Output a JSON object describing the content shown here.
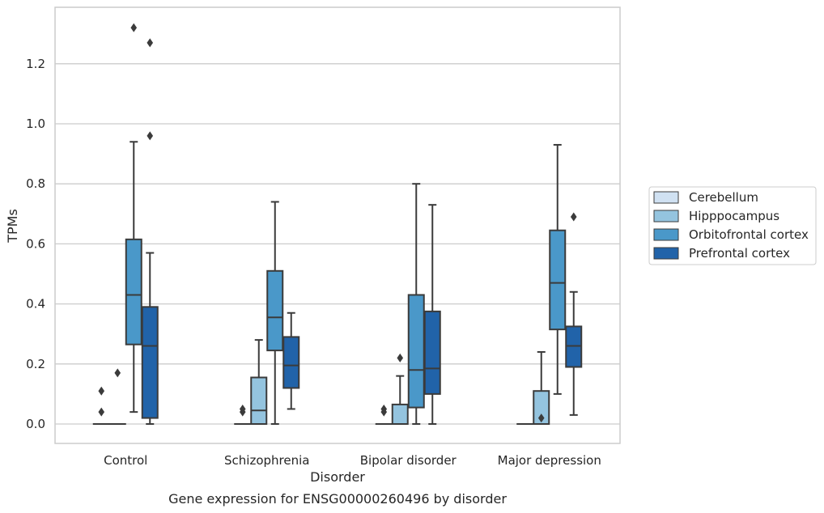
{
  "chart_data": {
    "type": "boxplot",
    "caption": "Gene expression for ENSG00000260496 by disorder",
    "xlabel": "Disorder",
    "ylabel": "TPMs",
    "ylim": [
      -0.065,
      1.38
    ],
    "yticks": [
      0.0,
      0.2,
      0.4,
      0.6,
      0.8,
      1.0,
      1.2
    ],
    "ytick_labels": [
      "0.0",
      "0.2",
      "0.4",
      "0.6",
      "0.8",
      "1.0",
      "1.2"
    ],
    "categories": [
      "Control",
      "Schizophrenia",
      "Bipolar disorder",
      "Major depression"
    ],
    "grid": "horizontal",
    "legend_placement": "center-right outside",
    "series": [
      {
        "name": "Cerebellum",
        "color": "#d0e1f2",
        "boxes": [
          {
            "whislo": 0.0,
            "q1": 0.0,
            "med": 0.0,
            "q3": 0.0,
            "whishi": 0.0,
            "fliers": [
              0.04,
              0.11
            ]
          },
          {
            "whislo": 0.0,
            "q1": 0.0,
            "med": 0.0,
            "q3": 0.0,
            "whishi": 0.0,
            "fliers": [
              0.04,
              0.05
            ]
          },
          {
            "whislo": 0.0,
            "q1": 0.0,
            "med": 0.0,
            "q3": 0.0,
            "whishi": 0.0,
            "fliers": [
              0.04,
              0.05
            ]
          },
          {
            "whislo": 0.0,
            "q1": 0.0,
            "med": 0.0,
            "q3": 0.0,
            "whishi": 0.0,
            "fliers": []
          }
        ]
      },
      {
        "name": "Hipppocampus",
        "color": "#94c4df",
        "boxes": [
          {
            "whislo": 0.0,
            "q1": 0.0,
            "med": 0.0,
            "q3": 0.0,
            "whishi": 0.0,
            "fliers": [
              0.17
            ]
          },
          {
            "whislo": 0.0,
            "q1": 0.0,
            "med": 0.045,
            "q3": 0.155,
            "whishi": 0.28,
            "fliers": []
          },
          {
            "whislo": 0.0,
            "q1": 0.0,
            "med": 0.0,
            "q3": 0.065,
            "whishi": 0.16,
            "fliers": [
              0.22
            ]
          },
          {
            "whislo": 0.0,
            "q1": 0.0,
            "med": 0.0,
            "q3": 0.11,
            "whishi": 0.24,
            "fliers": [
              0.02
            ]
          }
        ]
      },
      {
        "name": "Orbitofrontal cortex",
        "color": "#4a98c9",
        "boxes": [
          {
            "whislo": 0.04,
            "q1": 0.265,
            "med": 0.43,
            "q3": 0.615,
            "whishi": 0.94,
            "fliers": [
              1.32
            ]
          },
          {
            "whislo": 0.0,
            "q1": 0.245,
            "med": 0.355,
            "q3": 0.51,
            "whishi": 0.74,
            "fliers": []
          },
          {
            "whislo": 0.0,
            "q1": 0.055,
            "med": 0.18,
            "q3": 0.43,
            "whishi": 0.8,
            "fliers": []
          },
          {
            "whislo": 0.1,
            "q1": 0.315,
            "med": 0.47,
            "q3": 0.645,
            "whishi": 0.93,
            "fliers": []
          }
        ]
      },
      {
        "name": "Prefrontal cortex",
        "color": "#2163a9",
        "boxes": [
          {
            "whislo": 0.0,
            "q1": 0.02,
            "med": 0.26,
            "q3": 0.39,
            "whishi": 0.57,
            "fliers": [
              0.96,
              1.27
            ]
          },
          {
            "whislo": 0.05,
            "q1": 0.12,
            "med": 0.195,
            "q3": 0.29,
            "whishi": 0.37,
            "fliers": []
          },
          {
            "whislo": 0.0,
            "q1": 0.1,
            "med": 0.185,
            "q3": 0.375,
            "whishi": 0.73,
            "fliers": []
          },
          {
            "whislo": 0.03,
            "q1": 0.19,
            "med": 0.26,
            "q3": 0.325,
            "whishi": 0.44,
            "fliers": [
              0.69
            ]
          }
        ]
      }
    ],
    "colors": {
      "frame": "#cccccc",
      "grid": "#cccccc",
      "line": "#3b3b3b",
      "text": "#262626"
    }
  }
}
